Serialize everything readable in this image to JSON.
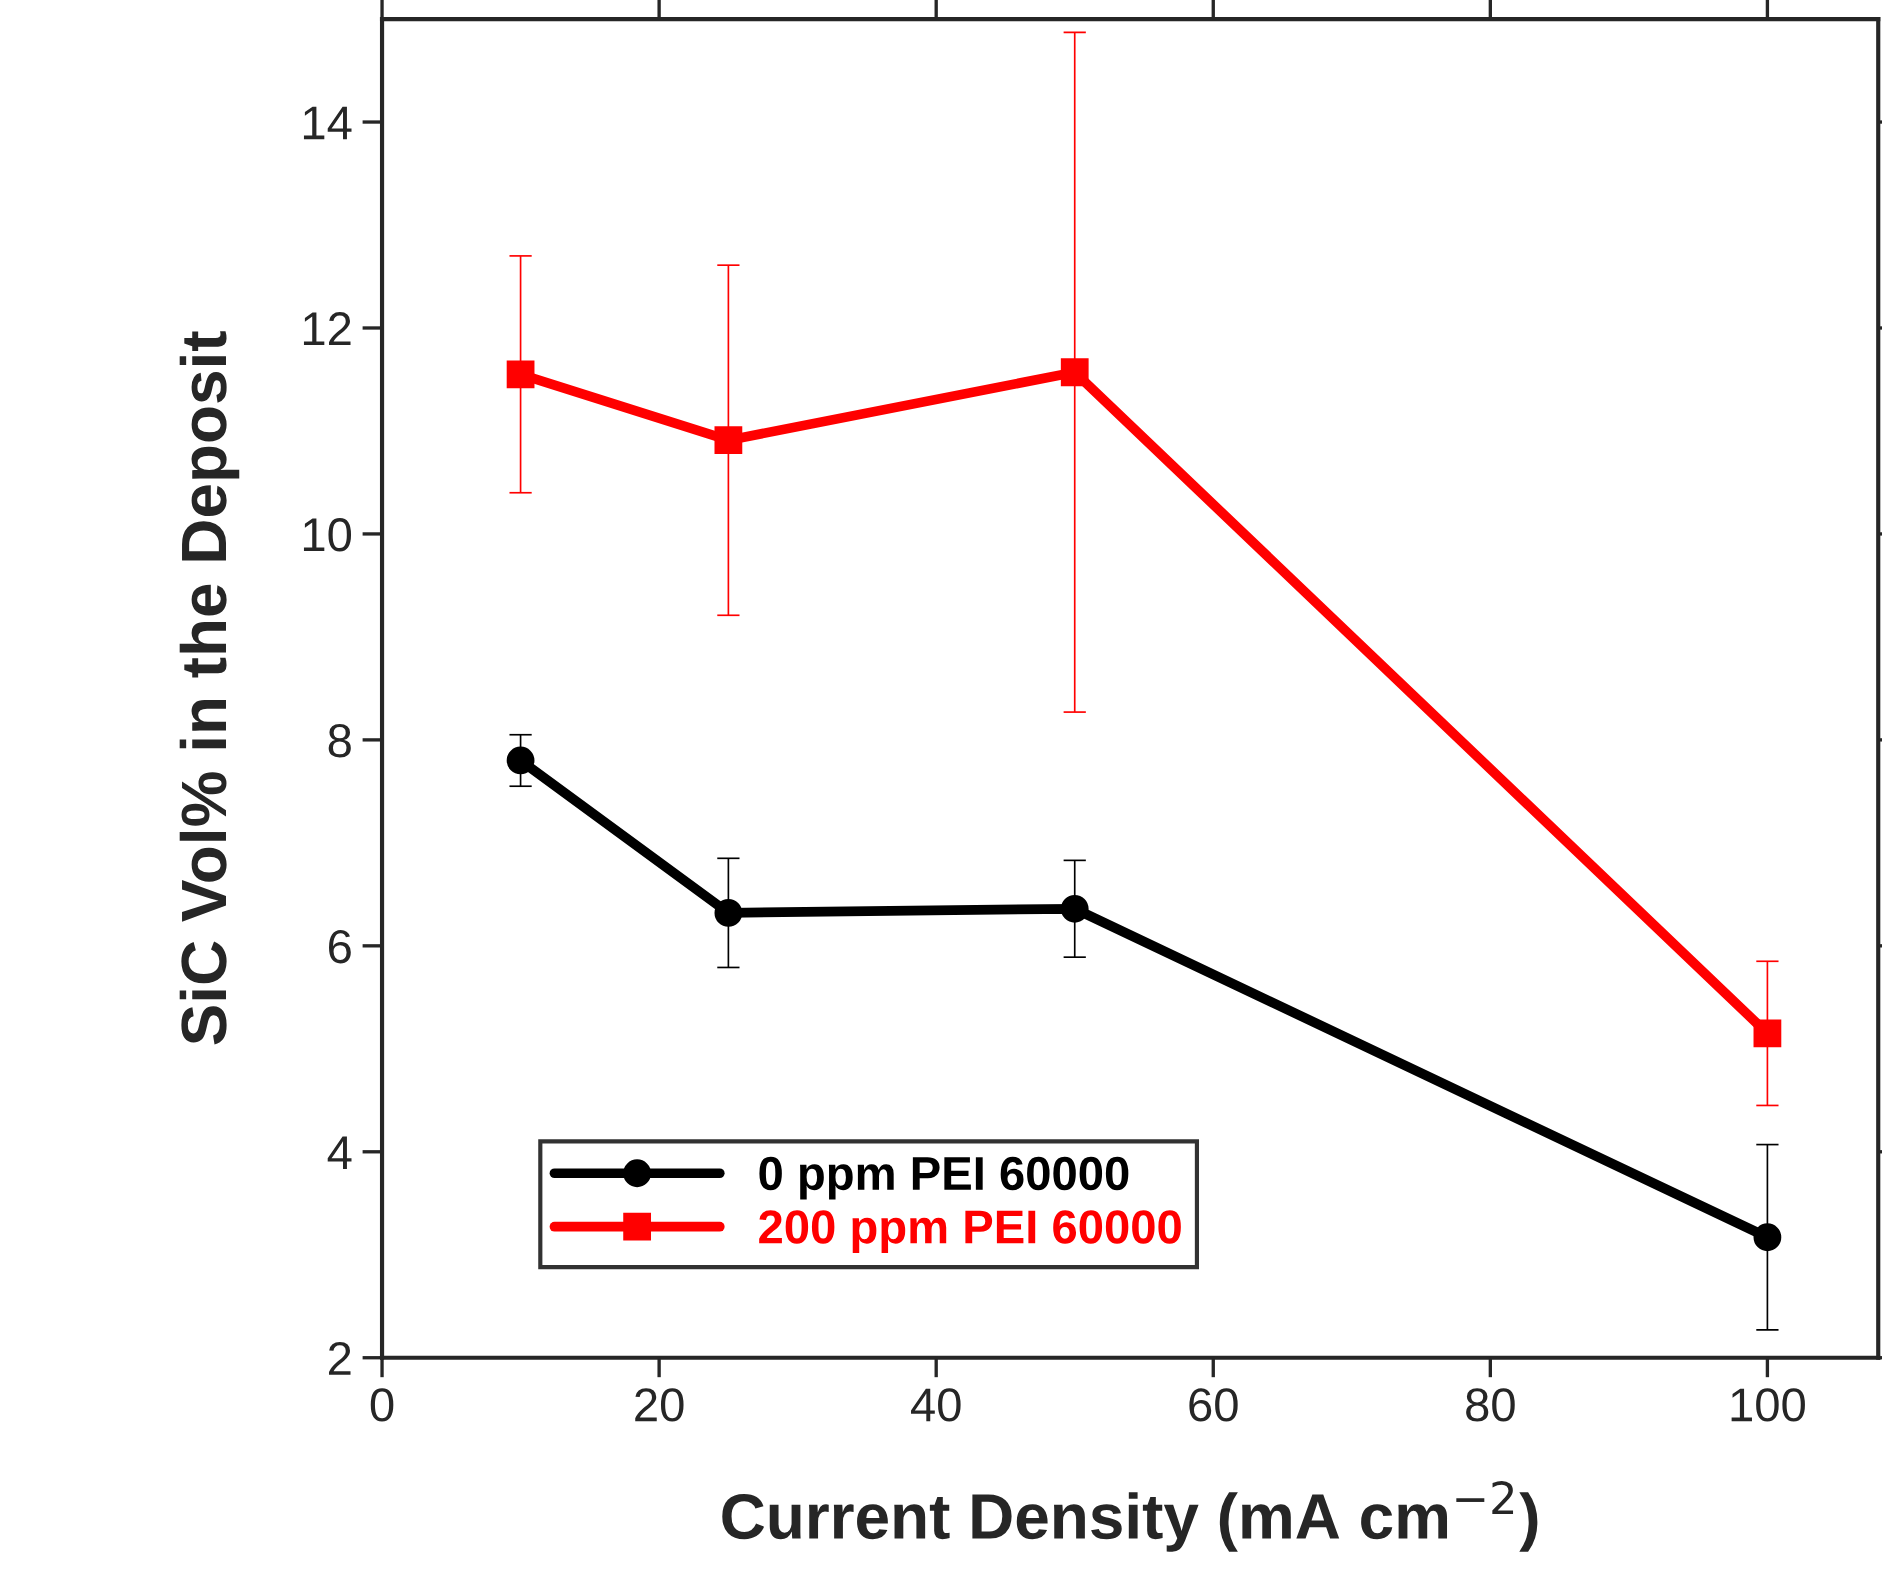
{
  "chart_data": {
    "type": "line",
    "xlabel": "Current Density (mA cm$^{−2}$)",
    "ylabel": "SiC Vol% in the Deposit",
    "x": [
      10,
      25,
      50,
      100
    ],
    "series": [
      {
        "name": "0 ppm PEI 60000",
        "color": "#000000",
        "marker": "circle",
        "values": [
          7.8,
          6.32,
          6.36,
          3.17
        ],
        "errors": [
          0.25,
          0.53,
          0.47,
          0.9
        ]
      },
      {
        "name": "200 ppm PEI 60000",
        "color": "#ff0000",
        "marker": "square",
        "values": [
          11.55,
          10.91,
          11.57,
          5.15
        ],
        "errors": [
          1.15,
          1.7,
          3.3,
          0.7
        ]
      }
    ],
    "xlim": [
      0,
      108
    ],
    "xticks": [
      0,
      20,
      40,
      60,
      80,
      100
    ],
    "ylim": [
      2,
      15
    ],
    "yticks": [
      2,
      4,
      6,
      8,
      10,
      12,
      14
    ],
    "grid": false,
    "legend": "bottom left",
    "line_style": "solid"
  }
}
